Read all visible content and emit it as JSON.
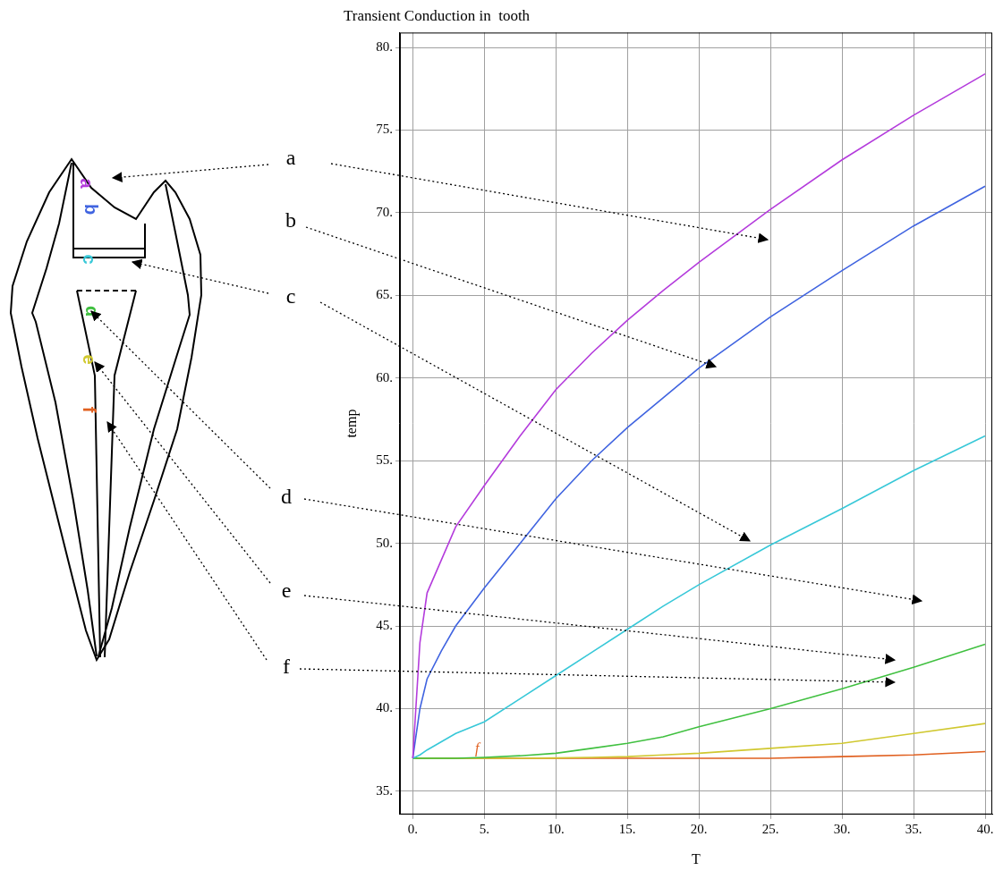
{
  "chart_data": {
    "type": "line",
    "title": "Transient Conduction in  tooth",
    "x_label": "T",
    "y_label": "temp",
    "x": [
      0,
      0.5,
      1,
      2,
      3,
      5,
      7.5,
      10,
      12.5,
      15,
      17.5,
      20,
      25,
      30,
      35,
      40
    ],
    "series": [
      {
        "name": "a",
        "color": "#b43cdc",
        "values": [
          37,
          44,
          47,
          49,
          51,
          53.5,
          56.5,
          59.3,
          61.5,
          63.5,
          65.3,
          67,
          70.2,
          73.2,
          75.9,
          78.4
        ]
      },
      {
        "name": "b",
        "color": "#4064e0",
        "values": [
          37,
          40,
          41.8,
          43.5,
          45,
          47.3,
          50,
          52.7,
          55,
          57,
          58.8,
          60.6,
          63.7,
          66.5,
          69.2,
          71.6
        ]
      },
      {
        "name": "c",
        "color": "#38c8d8",
        "values": [
          37,
          37.2,
          37.5,
          38,
          38.5,
          39.2,
          40.6,
          42,
          43.4,
          44.8,
          46.2,
          47.5,
          49.9,
          52.1,
          54.4,
          56.5
        ]
      },
      {
        "name": "d",
        "color": "#40c040",
        "values": [
          37,
          37,
          37,
          37,
          37,
          37.05,
          37.15,
          37.3,
          37.6,
          37.9,
          38.3,
          38.9,
          40,
          41.2,
          42.5,
          43.9
        ]
      },
      {
        "name": "e",
        "color": "#d0c830",
        "values": [
          37,
          37,
          37,
          37,
          37,
          37,
          37,
          37.02,
          37.05,
          37.1,
          37.2,
          37.3,
          37.6,
          37.9,
          38.5,
          39.1
        ]
      },
      {
        "name": "f",
        "color": "#e06020",
        "values": [
          37,
          37,
          37,
          37,
          37,
          37,
          37,
          37,
          37,
          37,
          37,
          37,
          37,
          37.1,
          37.2,
          37.4
        ]
      }
    ],
    "xlim": [
      -0.9,
      40.5
    ],
    "ylim": [
      33.6,
      80.9
    ],
    "xticks": [
      {
        "value": 0,
        "label": "0."
      },
      {
        "value": 5,
        "label": "5."
      },
      {
        "value": 10,
        "label": "10."
      },
      {
        "value": 15,
        "label": "15."
      },
      {
        "value": 20,
        "label": "20."
      },
      {
        "value": 25,
        "label": "25."
      },
      {
        "value": 30,
        "label": "30."
      },
      {
        "value": 35,
        "label": "35."
      },
      {
        "value": 40,
        "label": "40."
      }
    ],
    "yticks": [
      {
        "value": 35,
        "label": "35."
      },
      {
        "value": 40,
        "label": "40."
      },
      {
        "value": 45,
        "label": "45."
      },
      {
        "value": 50,
        "label": "50."
      },
      {
        "value": 55,
        "label": "55."
      },
      {
        "value": 60,
        "label": "60."
      },
      {
        "value": 65,
        "label": "65."
      },
      {
        "value": 70,
        "label": "70."
      },
      {
        "value": 75,
        "label": "75."
      },
      {
        "value": 80,
        "label": "80."
      }
    ],
    "grid": true,
    "annotations": [
      {
        "text": "f",
        "x": 4.5,
        "y": 37.1
      }
    ]
  }
}
